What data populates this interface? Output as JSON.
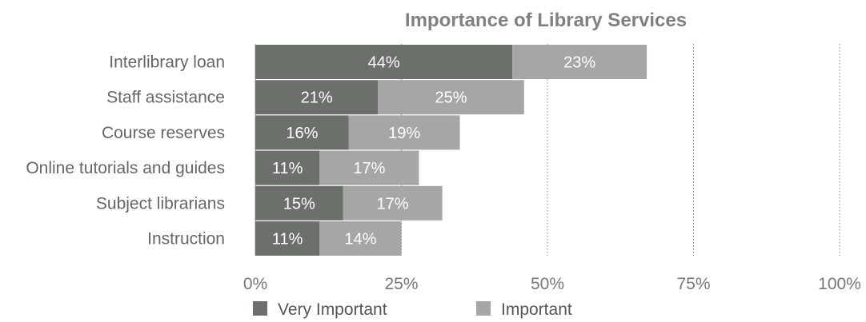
{
  "chart_data": {
    "type": "bar",
    "orientation": "horizontal",
    "stacked": true,
    "title": "Importance of Library Services",
    "categories": [
      "Interlibrary loan",
      "Staff assistance",
      "Course reserves",
      "Online tutorials and guides",
      "Subject librarians",
      "Instruction"
    ],
    "series": [
      {
        "name": "Very Important",
        "color": "#6b706b",
        "values": [
          44,
          21,
          16,
          11,
          15,
          11
        ],
        "labels": [
          "44%",
          "21%",
          "16%",
          "11%",
          "15%",
          "11%"
        ]
      },
      {
        "name": "Important",
        "color": "#a6a6a6",
        "values": [
          23,
          25,
          19,
          17,
          17,
          14
        ],
        "labels": [
          "23%",
          "25%",
          "19%",
          "17%",
          "17%",
          "14%"
        ]
      }
    ],
    "xlim": [
      0,
      100
    ],
    "xticks": [
      0,
      25,
      50,
      75,
      100
    ],
    "xtick_labels": [
      "0%",
      "25%",
      "50%",
      "75%",
      "100%"
    ],
    "grid": "vertical dotted",
    "legend": "bottom"
  }
}
